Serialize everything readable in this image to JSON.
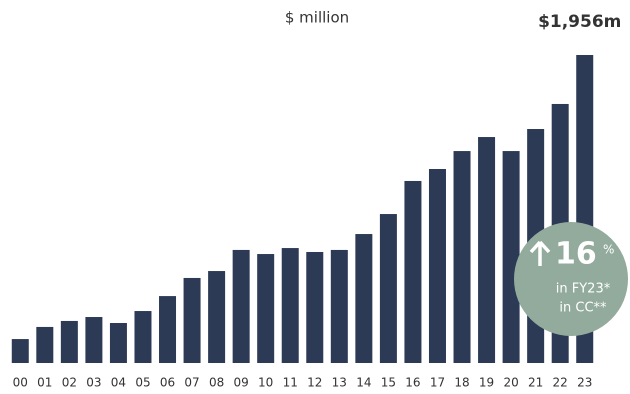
{
  "chart_data": {
    "type": "bar",
    "subtitle": "$ million",
    "categories": [
      "00",
      "01",
      "02",
      "03",
      "04",
      "05",
      "06",
      "07",
      "08",
      "09",
      "10",
      "11",
      "12",
      "13",
      "14",
      "15",
      "16",
      "17",
      "18",
      "19",
      "20",
      "21",
      "22",
      "23"
    ],
    "values": [
      152,
      229,
      267,
      292,
      254,
      330,
      425,
      540,
      584,
      718,
      692,
      730,
      705,
      718,
      819,
      946,
      1156,
      1232,
      1346,
      1435,
      1346,
      1486,
      1645,
      1956
    ],
    "value_labels": [
      null,
      null,
      null,
      null,
      null,
      null,
      null,
      null,
      null,
      null,
      null,
      null,
      null,
      null,
      null,
      null,
      null,
      null,
      null,
      null,
      null,
      null,
      null,
      "$1,956m"
    ],
    "color": "#2c3a56",
    "annotation": {
      "value": 16,
      "unit": "%",
      "line1": "in FY23*",
      "line2": "in CC**",
      "color": "#93ab9c"
    }
  }
}
